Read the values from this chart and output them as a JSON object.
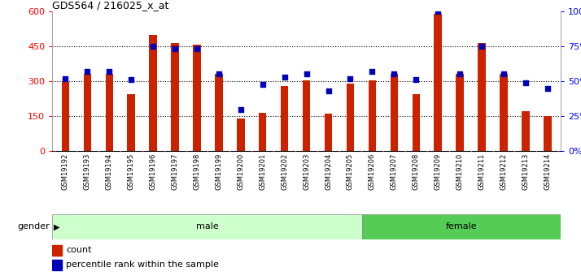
{
  "title": "GDS564 / 216025_x_at",
  "samples": [
    "GSM19192",
    "GSM19193",
    "GSM19194",
    "GSM19195",
    "GSM19196",
    "GSM19197",
    "GSM19198",
    "GSM19199",
    "GSM19200",
    "GSM19201",
    "GSM19202",
    "GSM19203",
    "GSM19204",
    "GSM19205",
    "GSM19206",
    "GSM19207",
    "GSM19208",
    "GSM19209",
    "GSM19210",
    "GSM19211",
    "GSM19212",
    "GSM19213",
    "GSM19214"
  ],
  "counts": [
    295,
    330,
    330,
    245,
    500,
    465,
    455,
    330,
    140,
    165,
    280,
    305,
    160,
    290,
    305,
    330,
    245,
    590,
    330,
    465,
    330,
    170,
    150
  ],
  "percentiles": [
    52,
    57,
    57,
    51,
    75,
    73,
    73,
    55,
    30,
    48,
    53,
    55,
    43,
    52,
    57,
    55,
    51,
    100,
    55,
    75,
    55,
    49,
    45
  ],
  "gender": [
    "male",
    "male",
    "male",
    "male",
    "male",
    "male",
    "male",
    "male",
    "male",
    "male",
    "male",
    "male",
    "male",
    "male",
    "female",
    "female",
    "female",
    "female",
    "female",
    "female",
    "female",
    "female",
    "female"
  ],
  "male_color": "#ccffcc",
  "female_color": "#55cc55",
  "bar_color": "#cc2200",
  "dot_color": "#0000bb",
  "label_bg": "#cccccc",
  "ylim_left": [
    0,
    600
  ],
  "ylim_right": [
    0,
    100
  ],
  "yticks_left": [
    0,
    150,
    300,
    450,
    600
  ],
  "yticks_right": [
    0,
    25,
    50,
    75,
    100
  ],
  "bg_color": "#ffffff"
}
